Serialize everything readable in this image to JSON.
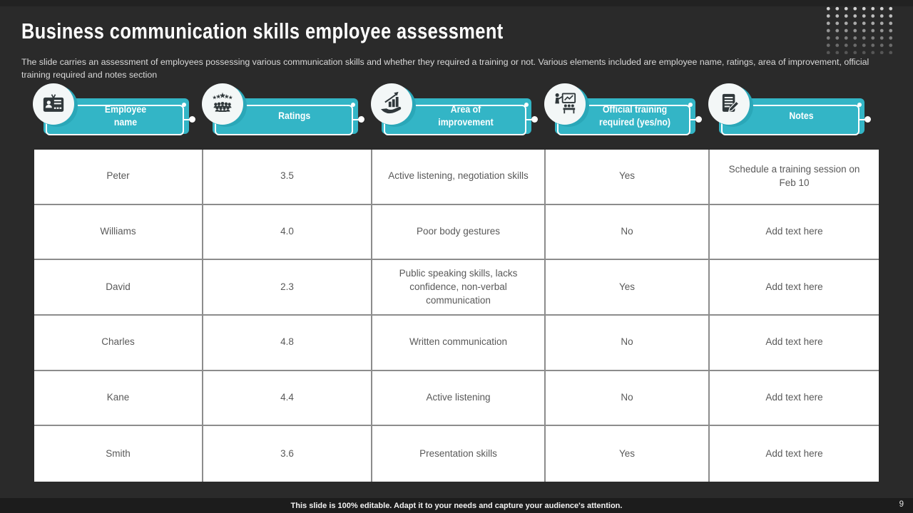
{
  "slide": {
    "title": "Business communication skills employee assessment",
    "subtitle": "The slide carries an assessment of employees possessing various communication skills and whether they required a training or not. Various elements included are employee name, ratings, area of improvement, official training required and notes section",
    "footer_note": "This slide is 100% editable. Adapt it to your needs and capture your audience's attention.",
    "page_number": "9"
  },
  "colors": {
    "accent_teal": "#33B5C6",
    "background": "#2A2A2A",
    "table_text": "#595959"
  },
  "table": {
    "columns": [
      {
        "label": "Employee name",
        "icon": "id-card-icon"
      },
      {
        "label": "Ratings",
        "icon": "rating-stars-icon"
      },
      {
        "label": "Area of improvement",
        "icon": "growth-hand-icon"
      },
      {
        "label": "Official training required (yes/no)",
        "icon": "presentation-icon"
      },
      {
        "label": "Notes",
        "icon": "notes-icon"
      }
    ],
    "rows": [
      [
        "Peter",
        "3.5",
        "Active listening, negotiation skills",
        "Yes",
        "Schedule a training session on Feb 10"
      ],
      [
        "Williams",
        "4.0",
        "Poor body gestures",
        "No",
        "Add text here"
      ],
      [
        "David",
        "2.3",
        "Public speaking skills, lacks confidence, non-verbal communication",
        "Yes",
        "Add text here"
      ],
      [
        "Charles",
        "4.8",
        "Written communication",
        "No",
        "Add text here"
      ],
      [
        "Kane",
        "4.4",
        "Active listening",
        "No",
        "Add text here"
      ],
      [
        "Smith",
        "3.6",
        "Presentation skills",
        "Yes",
        "Add text here"
      ]
    ]
  }
}
